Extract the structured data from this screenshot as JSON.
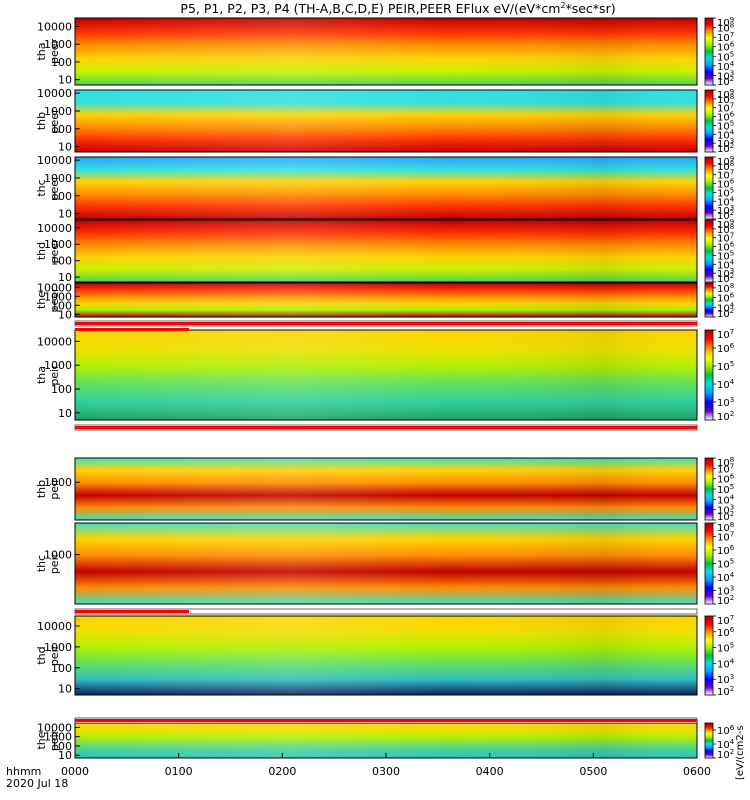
{
  "title": "P5, P1, P2, P3, P4 (TH-A,B,C,D,E) PEIR,PEER EFlux eV/(eV*cm",
  "title_sup": "2",
  "title_tail": "*sec*sr)",
  "footer": {
    "line1": "hhmm",
    "line2": "2020 Jul 18"
  },
  "colorbar_unit_label": "[eV/(cm2-s",
  "chart_data": {
    "type": "heatmap",
    "x_tick_labels": [
      "0000",
      "0100",
      "0200",
      "0300",
      "0400",
      "0500",
      "0600"
    ],
    "xlim": [
      "00:00",
      "06:00"
    ],
    "panels": [
      {
        "probe": "tha",
        "species": "peer",
        "ylabel1": "tha",
        "ylabel2": "peer",
        "yscale": "log",
        "ylim": [
          5,
          30000
        ],
        "yticks": [
          10,
          100,
          1000,
          10000
        ],
        "colorbar": {
          "min_exp": 2,
          "max_exp": 9
        },
        "colors": [
          "#b80000",
          "#ff2a00",
          "#ff8c00",
          "#ffd200",
          "#c8f000",
          "#50d050"
        ]
      },
      {
        "probe": "thb",
        "species": "peer",
        "ylabel1": "thb",
        "ylabel2": "peer",
        "yscale": "log",
        "ylim": [
          5,
          15000
        ],
        "yticks": [
          10,
          100,
          1000,
          10000
        ],
        "colorbar": {
          "min_exp": 2,
          "max_exp": 9
        },
        "colors": [
          "#30e0e0",
          "#30e0e0",
          "#ffd200",
          "#ff8c00",
          "#ff3000",
          "#c00000"
        ]
      },
      {
        "probe": "thc",
        "species": "peer",
        "ylabel1": "thc",
        "ylabel2": "peer",
        "yscale": "log",
        "ylim": [
          5,
          15000
        ],
        "yticks": [
          10,
          100,
          1000,
          10000
        ],
        "colorbar": {
          "min_exp": 2,
          "max_exp": 9
        },
        "colors": [
          "#2aa0ff",
          "#30e0e0",
          "#ffd200",
          "#ff8c00",
          "#ff3000",
          "#c00000"
        ]
      },
      {
        "probe": "thd",
        "species": "peer",
        "ylabel1": "thd",
        "ylabel2": "peer",
        "yscale": "log",
        "ylim": [
          5,
          30000
        ],
        "yticks": [
          10,
          100,
          1000,
          10000
        ],
        "colorbar": {
          "min_exp": 2,
          "max_exp": 9
        },
        "colors": [
          "#b80000",
          "#ff2a00",
          "#ff8c00",
          "#ffd200",
          "#c8f000",
          "#50d050"
        ]
      },
      {
        "probe": "the",
        "species": "peer",
        "ylabel1": "the",
        "ylabel2": "peer",
        "yscale": "log",
        "ylim": [
          5,
          30000
        ],
        "yticks": [
          10,
          100,
          1000,
          10000
        ],
        "colorbar": {
          "min_exp": 2,
          "max_exp": 9
        },
        "colors": [
          "#b80000",
          "#ff3000",
          "#ff8c00",
          "#ffd200",
          "#a0f000",
          "#b80000"
        ]
      },
      {
        "probe": "tha",
        "species": "peir",
        "ylabel1": "tha",
        "ylabel2": "peir",
        "yscale": "log",
        "ylim": [
          5,
          30000
        ],
        "yticks": [
          10,
          100,
          1000,
          10000
        ],
        "colorbar": {
          "min_exp": 2,
          "max_exp": 7
        },
        "colors": [
          "#ffd200",
          "#f0e000",
          "#b0f000",
          "#60e060",
          "#30d0a0",
          "#20a060"
        ]
      },
      {
        "probe": "thb",
        "species": "peir",
        "ylabel1": "thb",
        "ylabel2": "peir",
        "yscale": "log",
        "ylim": [
          5,
          30000
        ],
        "yticks": [
          1000
        ],
        "colorbar": {
          "min_exp": 2,
          "max_exp": 8
        },
        "colors": [
          "#40e0c0",
          "#ffd200",
          "#ff8c00",
          "#c00000",
          "#ff8c00",
          "#40e0c0"
        ]
      },
      {
        "probe": "thc",
        "species": "peir",
        "ylabel1": "thc",
        "ylabel2": "peir",
        "yscale": "log",
        "ylim": [
          5,
          30000
        ],
        "yticks": [
          1000
        ],
        "colorbar": {
          "min_exp": 2,
          "max_exp": 8
        },
        "colors": [
          "#40e0c0",
          "#ffd200",
          "#ff8c00",
          "#c00000",
          "#ff8c00",
          "#40e0c0"
        ]
      },
      {
        "probe": "thd",
        "species": "peir",
        "ylabel1": "thd",
        "ylabel2": "peir",
        "yscale": "log",
        "ylim": [
          5,
          30000
        ],
        "yticks": [
          10,
          100,
          1000,
          10000
        ],
        "colorbar": {
          "min_exp": 2,
          "max_exp": 7
        },
        "colors": [
          "#ffd200",
          "#f0e000",
          "#b0f000",
          "#60e060",
          "#30c0c0",
          "#102060"
        ]
      },
      {
        "probe": "the",
        "species": "peir",
        "ylabel1": "the",
        "ylabel2": "peir",
        "yscale": "log",
        "ylim": [
          5,
          30000
        ],
        "yticks": [
          10,
          100,
          1000,
          10000
        ],
        "colorbar": {
          "min_exp": 2,
          "max_exp": 7
        },
        "colors": [
          "#ffd200",
          "#f0e000",
          "#b0f000",
          "#70e060",
          "#40d0a0",
          "#30c0c0"
        ]
      }
    ],
    "status_bars": [
      {
        "after_panel": 4,
        "red_full": true,
        "extra_red_end": "01:06"
      },
      {
        "after_panel": 5,
        "red_full": true
      },
      {
        "after_panel": 7,
        "red_until": "01:06"
      },
      {
        "after_panel": 8,
        "red_full": true
      }
    ]
  }
}
